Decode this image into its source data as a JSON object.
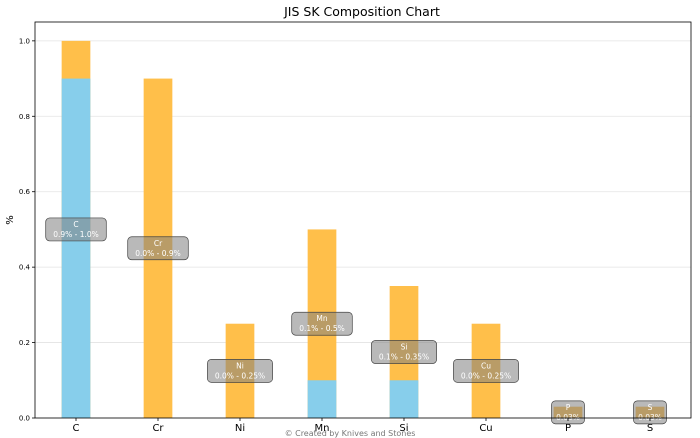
{
  "chart_data": {
    "type": "bar",
    "title": "JIS SK Composition Chart",
    "xlabel": "",
    "ylabel": "%",
    "ylim": [
      0,
      1.05
    ],
    "yticks": [
      "0.0",
      "0.2",
      "0.4",
      "0.6",
      "0.8",
      "1.0"
    ],
    "grid": "horizontal",
    "categories": [
      "C",
      "Cr",
      "Ni",
      "Mn",
      "Si",
      "Cu",
      "P",
      "S"
    ],
    "series": [
      {
        "name": "",
        "role": "min",
        "color": "#87ceeb",
        "values": [
          0.9,
          0.0,
          0.0,
          0.1,
          0.1,
          0.0,
          0.0,
          0.0
        ]
      },
      {
        "name": "",
        "role": "max",
        "color": "#ffbf4a",
        "values": [
          1.0,
          0.9,
          0.25,
          0.5,
          0.35,
          0.25,
          0.03,
          0.03
        ]
      }
    ],
    "annotations": [
      {
        "element": "C",
        "range": "0.9% - 1.0%"
      },
      {
        "element": "Cr",
        "range": "0.0% - 0.9%"
      },
      {
        "element": "Ni",
        "range": "0.0% - 0.25%"
      },
      {
        "element": "Mn",
        "range": "0.1% - 0.5%"
      },
      {
        "element": "Si",
        "range": "0.1% - 0.35%"
      },
      {
        "element": "Cu",
        "range": "0.0% - 0.25%"
      },
      {
        "element": "P",
        "range": "0.03%"
      },
      {
        "element": "S",
        "range": "0.03%"
      }
    ],
    "credit": "© Created by Knives and Stones"
  }
}
